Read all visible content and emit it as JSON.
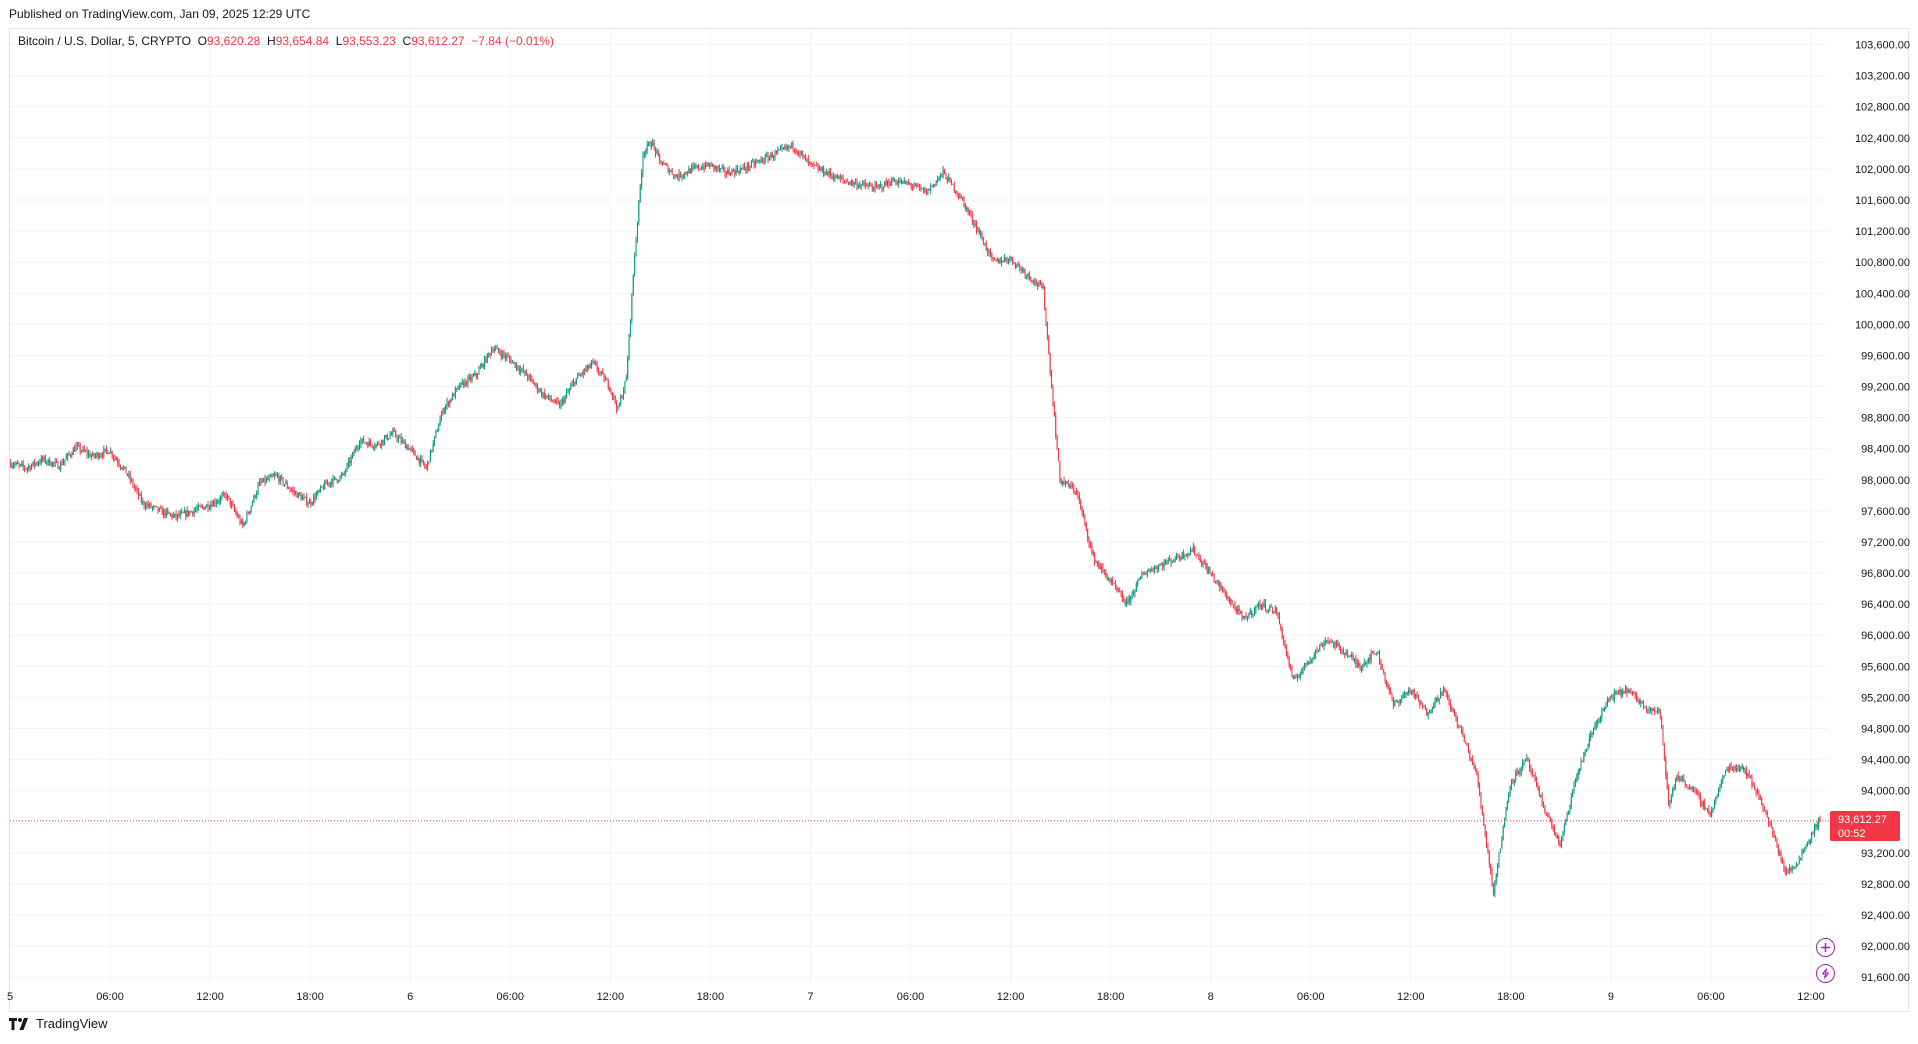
{
  "header": {
    "published": "Published on TradingView.com, Jan 09, 2025 12:29 UTC"
  },
  "legend": {
    "symbol": "Bitcoin / U.S. Dollar, 5, CRYPTO",
    "o_label": "O",
    "o_value": "93,620.28",
    "h_label": "H",
    "h_value": "93,654.84",
    "l_label": "L",
    "l_value": "93,553.23",
    "c_label": "C",
    "c_value": "93,612.27",
    "change": "−7.84 (−0.01%)"
  },
  "price_tag": {
    "price": "93,612.27",
    "countdown": "00:52"
  },
  "footer": {
    "brand": "TradingView"
  },
  "icons": {
    "add": "plus-circle-icon",
    "alert": "lightning-circle-icon",
    "logo": "tradingview-logo-icon"
  },
  "colors": {
    "up": "#089981",
    "down": "#f23645",
    "grid": "#f0f3fa",
    "accent": "#9c27b0"
  },
  "chart_data": {
    "type": "candlestick",
    "symbol": "Bitcoin / U.S. Dollar",
    "interval": "5",
    "y_axis": {
      "range": [
        91500,
        103800
      ],
      "ticks": [
        "103,600.00",
        "103,200.00",
        "102,800.00",
        "102,400.00",
        "102,000.00",
        "101,600.00",
        "101,200.00",
        "100,800.00",
        "100,400.00",
        "100,000.00",
        "99,600.00",
        "99,200.00",
        "98,800.00",
        "98,400.00",
        "98,000.00",
        "97,600.00",
        "97,200.00",
        "96,800.00",
        "96,400.00",
        "96,000.00",
        "95,600.00",
        "95,200.00",
        "94,800.00",
        "94,400.00",
        "94,000.00",
        "93,200.00",
        "92,800.00",
        "92,400.00",
        "92,000.00",
        "91,600.00"
      ],
      "tick_values": [
        103600,
        103200,
        102800,
        102400,
        102000,
        101600,
        101200,
        100800,
        100400,
        100000,
        99600,
        99200,
        98800,
        98400,
        98000,
        97600,
        97200,
        96800,
        96400,
        96000,
        95600,
        95200,
        94800,
        94400,
        94000,
        93200,
        92800,
        92400,
        92000,
        91600
      ]
    },
    "x_axis": {
      "ticks": [
        "5",
        "06:00",
        "12:00",
        "18:00",
        "6",
        "06:00",
        "12:00",
        "18:00",
        "7",
        "06:00",
        "12:00",
        "18:00",
        "8",
        "06:00",
        "12:00",
        "18:00",
        "9",
        "06:00",
        "12:00"
      ],
      "tick_hours": [
        0,
        6,
        12,
        18,
        24,
        30,
        36,
        42,
        48,
        54,
        60,
        66,
        72,
        78,
        84,
        90,
        96,
        102,
        108
      ],
      "range_hours": [
        0,
        108.5
      ]
    },
    "last_price": 93612.27,
    "price_path": [
      [
        -0.3,
        98240
      ],
      [
        1,
        98150
      ],
      [
        2,
        98260
      ],
      [
        3,
        98180
      ],
      [
        4,
        98420
      ],
      [
        5,
        98300
      ],
      [
        6,
        98380
      ],
      [
        7,
        98100
      ],
      [
        8,
        97700
      ],
      [
        9,
        97600
      ],
      [
        10,
        97520
      ],
      [
        11,
        97600
      ],
      [
        12,
        97680
      ],
      [
        13,
        97800
      ],
      [
        14,
        97400
      ],
      [
        15,
        97950
      ],
      [
        16,
        98050
      ],
      [
        17,
        97850
      ],
      [
        18,
        97700
      ],
      [
        19,
        97950
      ],
      [
        20,
        98050
      ],
      [
        21,
        98500
      ],
      [
        22,
        98450
      ],
      [
        23,
        98600
      ],
      [
        24,
        98400
      ],
      [
        25,
        98150
      ],
      [
        26,
        98900
      ],
      [
        27,
        99200
      ],
      [
        28,
        99350
      ],
      [
        29,
        99700
      ],
      [
        30,
        99550
      ],
      [
        31,
        99350
      ],
      [
        32,
        99100
      ],
      [
        33,
        98950
      ],
      [
        34,
        99300
      ],
      [
        35,
        99500
      ],
      [
        36,
        99200
      ],
      [
        36.5,
        98900
      ],
      [
        37,
        99300
      ],
      [
        37.5,
        100900
      ],
      [
        38,
        102200
      ],
      [
        38.5,
        102350
      ],
      [
        39,
        102100
      ],
      [
        40,
        101900
      ],
      [
        41,
        102000
      ],
      [
        42,
        102050
      ],
      [
        43,
        101950
      ],
      [
        44,
        102000
      ],
      [
        45,
        102100
      ],
      [
        46,
        102200
      ],
      [
        47,
        102300
      ],
      [
        48,
        102050
      ],
      [
        49,
        101950
      ],
      [
        50,
        101850
      ],
      [
        51,
        101800
      ],
      [
        52,
        101750
      ],
      [
        53,
        101850
      ],
      [
        54,
        101800
      ],
      [
        55,
        101700
      ],
      [
        56,
        101950
      ],
      [
        57,
        101650
      ],
      [
        58,
        101250
      ],
      [
        59,
        100800
      ],
      [
        60,
        100850
      ],
      [
        61,
        100650
      ],
      [
        62,
        100450
      ],
      [
        62.5,
        99200
      ],
      [
        63,
        98000
      ],
      [
        64,
        97850
      ],
      [
        65,
        97000
      ],
      [
        66,
        96700
      ],
      [
        67,
        96400
      ],
      [
        68,
        96800
      ],
      [
        69,
        96900
      ],
      [
        70,
        97000
      ],
      [
        71,
        97100
      ],
      [
        72,
        96800
      ],
      [
        73,
        96500
      ],
      [
        74,
        96200
      ],
      [
        75,
        96400
      ],
      [
        76,
        96300
      ],
      [
        77,
        95400
      ],
      [
        78,
        95700
      ],
      [
        79,
        95950
      ],
      [
        80,
        95800
      ],
      [
        81,
        95600
      ],
      [
        82,
        95800
      ],
      [
        83,
        95100
      ],
      [
        84,
        95300
      ],
      [
        85,
        95000
      ],
      [
        86,
        95300
      ],
      [
        87,
        94800
      ],
      [
        88,
        94200
      ],
      [
        89,
        92700
      ],
      [
        89.5,
        93400
      ],
      [
        90,
        94100
      ],
      [
        91,
        94400
      ],
      [
        92,
        93800
      ],
      [
        93,
        93300
      ],
      [
        94,
        94200
      ],
      [
        95,
        94800
      ],
      [
        96,
        95200
      ],
      [
        97,
        95300
      ],
      [
        98,
        95100
      ],
      [
        99,
        95000
      ],
      [
        99.5,
        93800
      ],
      [
        100,
        94200
      ],
      [
        101,
        94000
      ],
      [
        102,
        93700
      ],
      [
        103,
        94300
      ],
      [
        104,
        94300
      ],
      [
        105,
        93900
      ],
      [
        106,
        93300
      ],
      [
        106.5,
        92950
      ],
      [
        107,
        93000
      ],
      [
        108,
        93400
      ],
      [
        108.5,
        93612.27
      ]
    ]
  }
}
